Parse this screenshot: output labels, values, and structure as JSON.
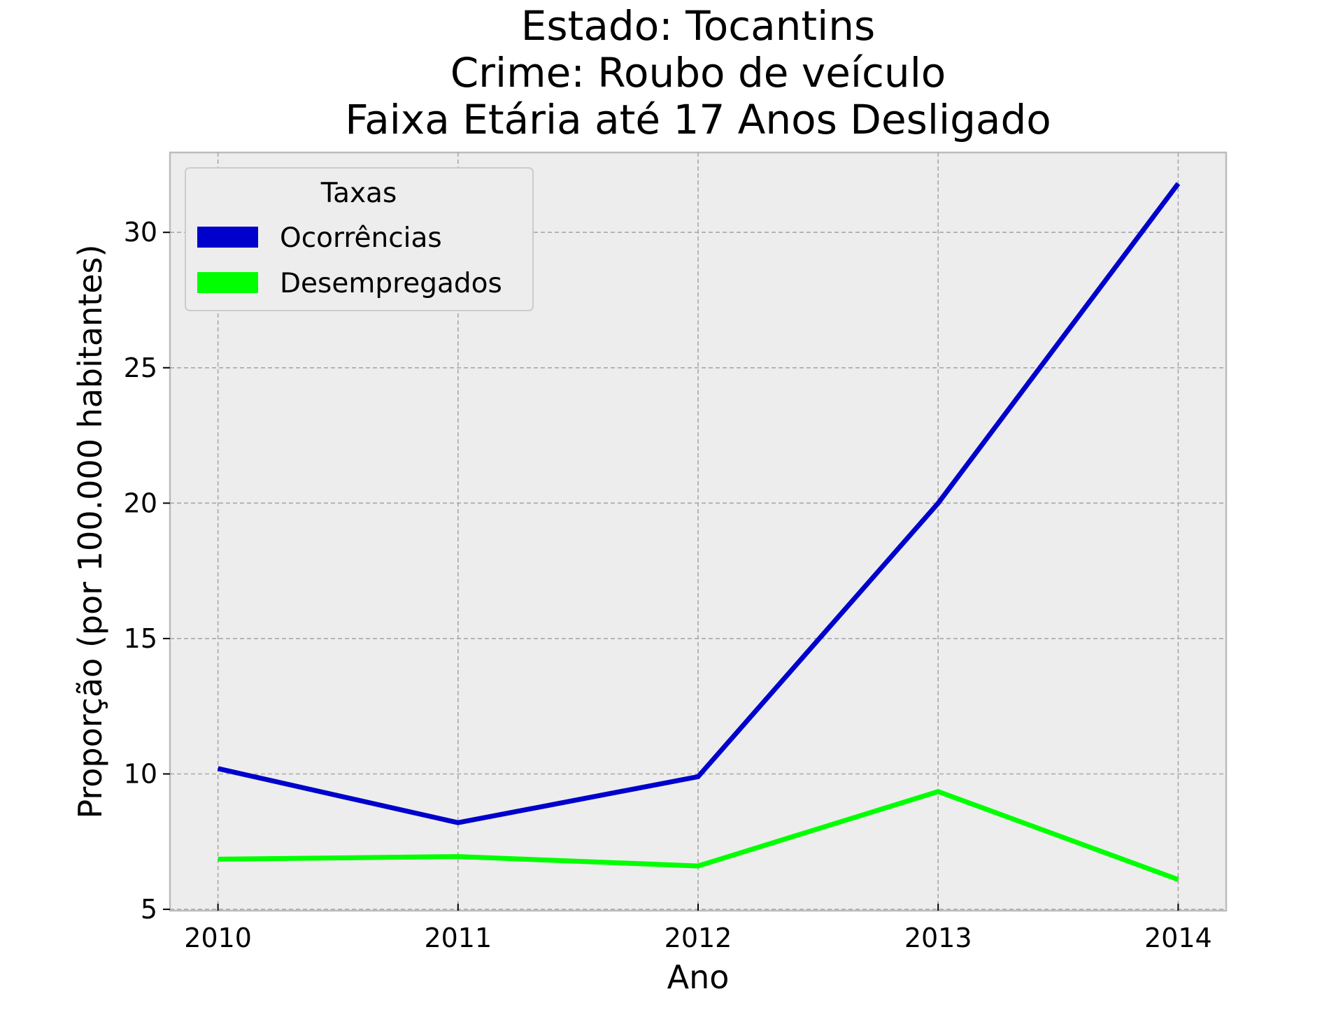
{
  "chart_data": {
    "type": "line",
    "title_lines": [
      "Estado: Tocantins",
      "Crime: Roubo de veículo",
      "Faixa Etária até 17 Anos   Desligado"
    ],
    "xlabel": "Ano",
    "ylabel": "Proporção (por 100.000 habitantes)",
    "x": [
      2010,
      2011,
      2012,
      2013,
      2014
    ],
    "xtick_labels": [
      "2010",
      "2011",
      "2012",
      "2013",
      "2014"
    ],
    "yticks": [
      5,
      10,
      15,
      20,
      25,
      30
    ],
    "ytick_labels": [
      "5",
      "10",
      "15",
      "20",
      "25",
      "30"
    ],
    "xlim": [
      2009.8,
      2014.2
    ],
    "ylim": [
      4.95,
      32.95
    ],
    "grid": true,
    "legend": {
      "title": "Taxas",
      "placement": "top-left"
    },
    "series": [
      {
        "name": "Ocorrências",
        "color": "#0000CC",
        "values": [
          10.2,
          8.2,
          9.9,
          20.0,
          31.8
        ]
      },
      {
        "name": "Desempregados",
        "color": "#00FF00",
        "values": [
          6.85,
          6.95,
          6.6,
          9.35,
          6.1
        ]
      }
    ],
    "background_color": "#EDEDED"
  }
}
